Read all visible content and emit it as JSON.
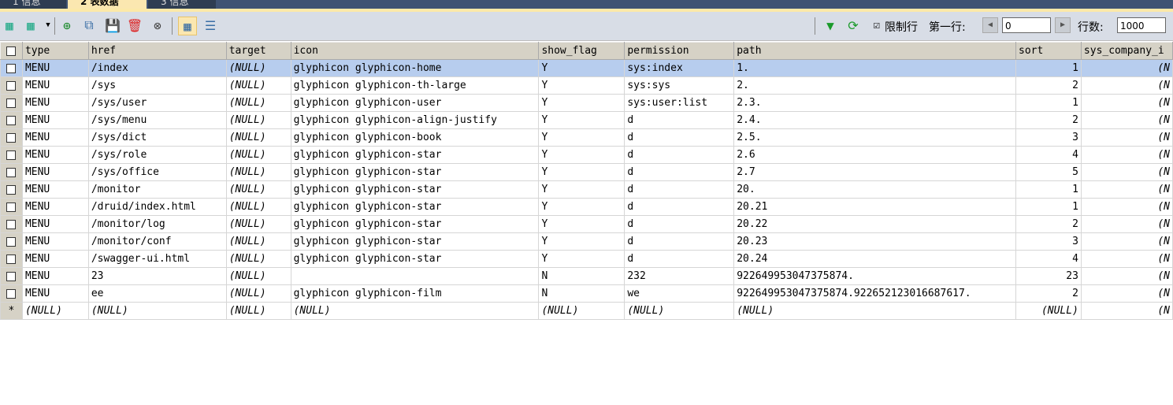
{
  "tabs": [
    {
      "label": "1 信息"
    },
    {
      "label": "2 表数据"
    },
    {
      "label": "3 信息"
    }
  ],
  "toolbar": {
    "limit_label": "限制行",
    "first_row_label": "第一行:",
    "first_row_value": "0",
    "rows_label": "行数:",
    "rows_value": "1000",
    "limit_checked": true
  },
  "columns": [
    "type",
    "href",
    "target",
    "icon",
    "show_flag",
    "permission",
    "path",
    "sort",
    "sys_company_i"
  ],
  "rows": [
    [
      "MENU",
      "/index",
      "(NULL)",
      "glyphicon glyphicon-home",
      "Y",
      "sys:index",
      "1.",
      "1",
      "(N"
    ],
    [
      "MENU",
      "/sys",
      "(NULL)",
      "glyphicon glyphicon-th-large",
      "Y",
      "sys:sys",
      "2.",
      "2",
      "(N"
    ],
    [
      "MENU",
      "/sys/user",
      "(NULL)",
      "glyphicon glyphicon-user",
      "Y",
      "sys:user:list",
      "2.3.",
      "1",
      "(N"
    ],
    [
      "MENU",
      "/sys/menu",
      "(NULL)",
      "glyphicon glyphicon-align-justify",
      "Y",
      "d",
      "2.4.",
      "2",
      "(N"
    ],
    [
      "MENU",
      "/sys/dict",
      "(NULL)",
      "glyphicon glyphicon-book",
      "Y",
      "d",
      "2.5.",
      "3",
      "(N"
    ],
    [
      "MENU",
      "/sys/role",
      "(NULL)",
      "glyphicon glyphicon-star",
      "Y",
      "d",
      "2.6",
      "4",
      "(N"
    ],
    [
      "MENU",
      "/sys/office",
      "(NULL)",
      "glyphicon glyphicon-star",
      "Y",
      "d",
      "2.7",
      "5",
      "(N"
    ],
    [
      "MENU",
      "/monitor",
      "(NULL)",
      "glyphicon glyphicon-star",
      "Y",
      "d",
      "20.",
      "1",
      "(N"
    ],
    [
      "MENU",
      "/druid/index.html",
      "(NULL)",
      "glyphicon glyphicon-star",
      "Y",
      "d",
      "20.21",
      "1",
      "(N"
    ],
    [
      "MENU",
      "/monitor/log",
      "(NULL)",
      "glyphicon glyphicon-star",
      "Y",
      "d",
      "20.22",
      "2",
      "(N"
    ],
    [
      "MENU",
      "/monitor/conf",
      "(NULL)",
      "glyphicon glyphicon-star",
      "Y",
      "d",
      "20.23",
      "3",
      "(N"
    ],
    [
      "MENU",
      "/swagger-ui.html",
      "(NULL)",
      "glyphicon glyphicon-star",
      "Y",
      "d",
      "20.24",
      "4",
      "(N"
    ],
    [
      "MENU",
      "23",
      "(NULL)",
      "",
      "N",
      "232",
      "922649953047375874.",
      "23",
      "(N"
    ],
    [
      "MENU",
      "ee",
      "(NULL)",
      "glyphicon glyphicon-film",
      "N",
      "we",
      "922649953047375874.922652123016687617.",
      "2",
      "(N"
    ]
  ],
  "new_row": {
    "marker": "*",
    "values": [
      "(NULL)",
      "(NULL)",
      "(NULL)",
      "(NULL)",
      "(NULL)",
      "(NULL)",
      "(NULL)",
      "(NULL)",
      "(N"
    ]
  },
  "selected_row": 0
}
